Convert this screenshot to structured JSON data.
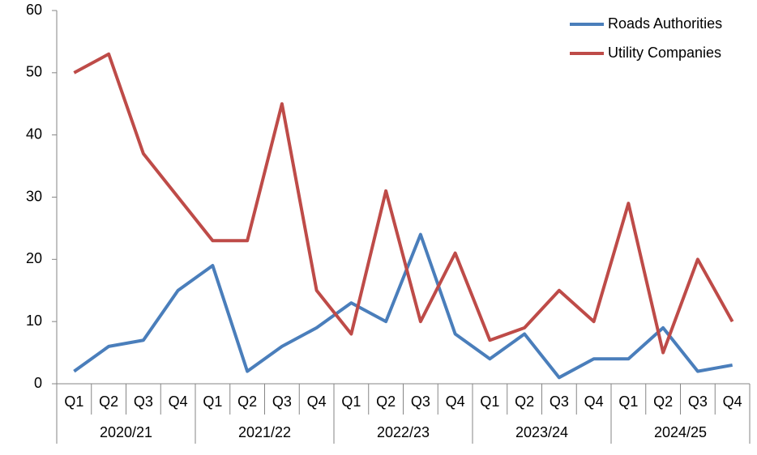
{
  "chart_data": {
    "type": "line",
    "groups": [
      {
        "name": "2020/21",
        "categories": [
          "Q1",
          "Q2",
          "Q3",
          "Q4"
        ]
      },
      {
        "name": "2021/22",
        "categories": [
          "Q1",
          "Q2",
          "Q3",
          "Q4"
        ]
      },
      {
        "name": "2022/23",
        "categories": [
          "Q1",
          "Q2",
          "Q3",
          "Q4"
        ]
      },
      {
        "name": "2023/24",
        "categories": [
          "Q1",
          "Q2",
          "Q3",
          "Q4"
        ]
      },
      {
        "name": "2024/25",
        "categories": [
          "Q1",
          "Q2",
          "Q3",
          "Q4"
        ]
      }
    ],
    "series": [
      {
        "name": "Roads Authorities",
        "color": "#4a7ebb",
        "values": [
          2,
          6,
          7,
          15,
          19,
          2,
          6,
          9,
          13,
          10,
          24,
          8,
          4,
          8,
          1,
          4,
          4,
          9,
          2,
          3
        ]
      },
      {
        "name": "Utility Companies",
        "color": "#be4b48",
        "values": [
          50,
          53,
          37,
          30,
          23,
          23,
          45,
          15,
          8,
          31,
          10,
          21,
          7,
          9,
          15,
          10,
          29,
          5,
          20,
          10
        ]
      }
    ],
    "ylim": [
      0,
      60
    ],
    "yticks": [
      0,
      10,
      20,
      30,
      40,
      50,
      60
    ],
    "grid": false,
    "legend": "upper right"
  }
}
